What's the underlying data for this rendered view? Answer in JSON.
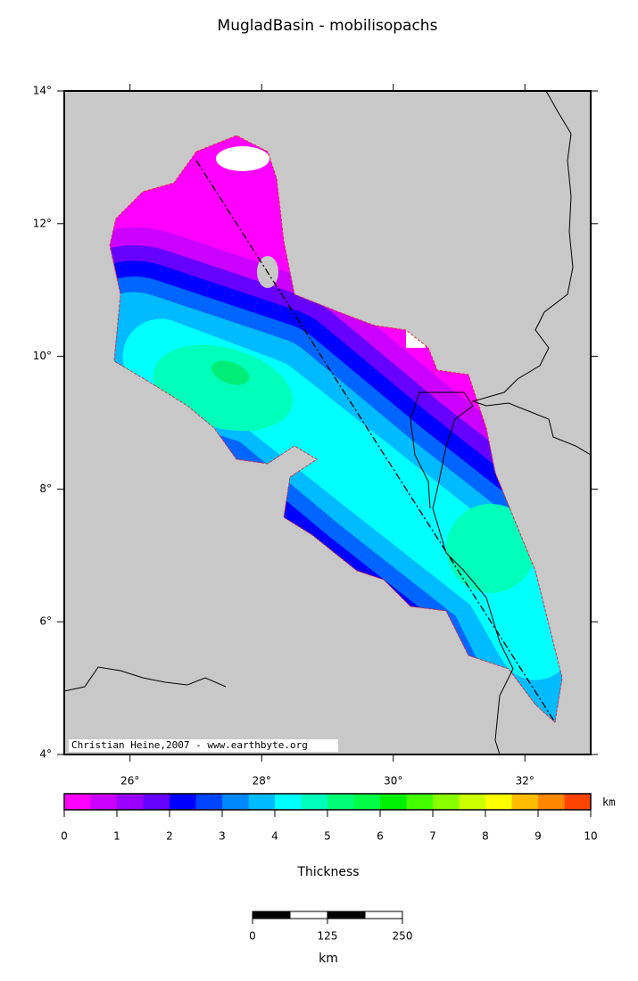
{
  "title": "MugladBasin - mobilisopachs",
  "map": {
    "xlim": [
      25,
      33
    ],
    "ylim": [
      4,
      14
    ],
    "xticks": [
      {
        "value": 26,
        "label": "26°"
      },
      {
        "value": 28,
        "label": "28°"
      },
      {
        "value": 30,
        "label": "30°"
      },
      {
        "value": 32,
        "label": "32°"
      }
    ],
    "yticks": [
      {
        "value": 4,
        "label": "4°"
      },
      {
        "value": 6,
        "label": "6°"
      },
      {
        "value": 8,
        "label": "8°"
      },
      {
        "value": 10,
        "label": "10°"
      },
      {
        "value": 12,
        "label": "12°"
      },
      {
        "value": 14,
        "label": "14°"
      }
    ],
    "credit": "Christian Heine,2007 - www.earthbyte.org"
  },
  "colorbar": {
    "ticks": [
      0,
      1,
      2,
      3,
      4,
      5,
      6,
      7,
      8,
      9,
      10
    ],
    "unit": "km",
    "label": "Thickness",
    "colors": [
      "#ff00ff",
      "#cc00ff",
      "#9900ff",
      "#6600ff",
      "#0000ff",
      "#0044ff",
      "#0088ff",
      "#00bbff",
      "#00ffff",
      "#00ffbb",
      "#00ff77",
      "#00ff44",
      "#00ee00",
      "#44ff00",
      "#88ff00",
      "#ccff00",
      "#ffff00",
      "#ffbb00",
      "#ff8800",
      "#ff4400"
    ]
  },
  "scalebar": {
    "ticks": [
      0,
      125,
      250
    ],
    "unit": "km"
  }
}
